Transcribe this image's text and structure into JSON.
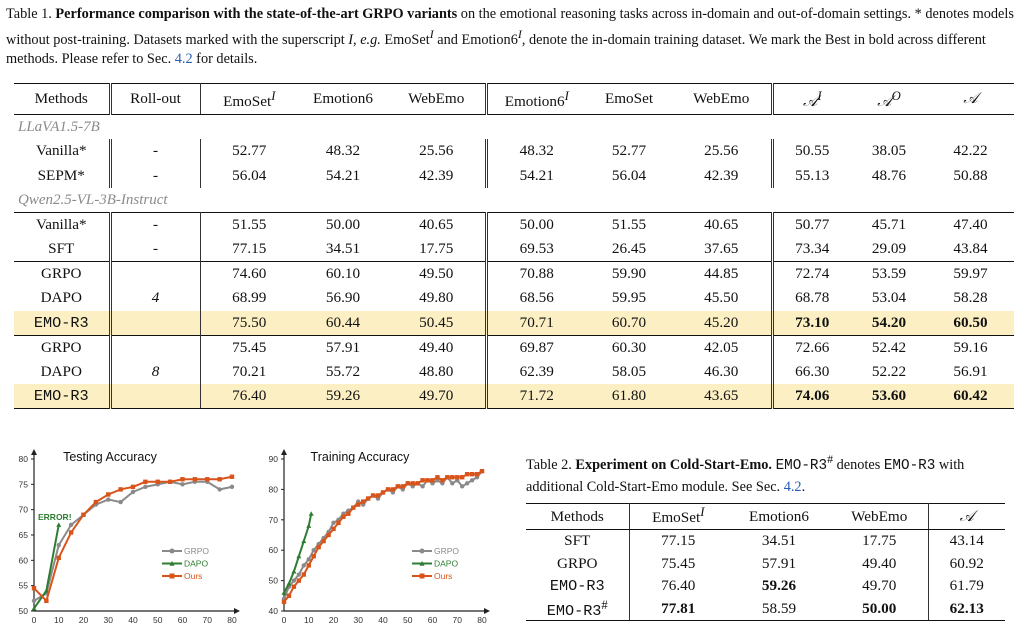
{
  "table1": {
    "caption_label": "Table 1.",
    "caption_bold": "Performance comparison with the state-of-the-art GRPO variants",
    "caption_rest_1": " on the emotional reasoning tasks across in-domain and out-of-domain settings. * denotes models without post-training. Datasets marked with the superscript ",
    "caption_I": "I",
    "caption_rest_2": ", ",
    "caption_eg": "e.g.",
    "caption_rest_3": " EmoSet",
    "caption_rest_4": " and Emotion6",
    "caption_rest_5": ", denote the in-domain training dataset. We mark the Best in bold across different methods. Please refer to Sec. ",
    "caption_ref": "4.2",
    "caption_rest_6": " for details.",
    "headers": {
      "methods": "Methods",
      "rollout": "Roll-out",
      "emoset_in": "EmoSet",
      "emotion6_a": "Emotion6",
      "webemo_a": "WebEmo",
      "emotion6_in": "Emotion6",
      "emoset_b": "EmoSet",
      "webemo_b": "WebEmo",
      "sup_I": "I",
      "sup_O": "O",
      "A": "𝒜"
    },
    "groups": [
      "LLaVA1.5-7B",
      "Qwen2.5-VL-3B-Instruct"
    ],
    "rows": [
      {
        "method": "Vanilla*",
        "rollout": "-",
        "v": [
          "52.77",
          "48.32",
          "25.56",
          "48.32",
          "52.77",
          "25.56",
          "50.55",
          "38.05",
          "42.22"
        ]
      },
      {
        "method": "SEPM*",
        "rollout": "-",
        "v": [
          "56.04",
          "54.21",
          "42.39",
          "54.21",
          "56.04",
          "42.39",
          "55.13",
          "48.76",
          "50.88"
        ]
      },
      {
        "method": "Vanilla*",
        "rollout": "-",
        "v": [
          "51.55",
          "50.00",
          "40.65",
          "50.00",
          "51.55",
          "40.65",
          "50.77",
          "45.71",
          "47.40"
        ]
      },
      {
        "method": "SFT",
        "rollout": "-",
        "v": [
          "77.15",
          "34.51",
          "17.75",
          "69.53",
          "26.45",
          "37.65",
          "73.34",
          "29.09",
          "43.84"
        ]
      },
      {
        "method": "GRPO",
        "rollout": "",
        "v": [
          "74.60",
          "60.10",
          "49.50",
          "70.88",
          "59.90",
          "44.85",
          "72.74",
          "53.59",
          "59.97"
        ]
      },
      {
        "method": "DAPO",
        "rollout": "4",
        "v": [
          "68.99",
          "56.90",
          "49.80",
          "68.56",
          "59.95",
          "45.50",
          "68.78",
          "53.04",
          "58.28"
        ]
      },
      {
        "method": "EMO-R3",
        "rollout": "",
        "v": [
          "75.50",
          "60.44",
          "50.45",
          "70.71",
          "60.70",
          "45.20",
          "73.10",
          "54.20",
          "60.50"
        ]
      },
      {
        "method": "GRPO",
        "rollout": "",
        "v": [
          "75.45",
          "57.91",
          "49.40",
          "69.87",
          "60.30",
          "42.05",
          "72.66",
          "52.42",
          "59.16"
        ]
      },
      {
        "method": "DAPO",
        "rollout": "8",
        "v": [
          "70.21",
          "55.72",
          "48.80",
          "62.39",
          "58.05",
          "46.30",
          "66.30",
          "52.22",
          "56.91"
        ]
      },
      {
        "method": "EMO-R3",
        "rollout": "",
        "v": [
          "76.40",
          "59.26",
          "49.70",
          "71.72",
          "61.80",
          "43.65",
          "74.06",
          "53.60",
          "60.42"
        ]
      }
    ]
  },
  "plots": {
    "testing": {
      "title": "Testing Accuracy",
      "annotation": "ERROR!",
      "ylim": [
        50,
        80
      ],
      "yticks": [
        "50",
        "55",
        "60",
        "65",
        "70",
        "75",
        "80"
      ],
      "xticks": [
        "0",
        "10",
        "20",
        "30",
        "40",
        "50",
        "60",
        "70",
        "80"
      ],
      "legend": [
        "GRPO",
        "DAPO",
        "Ours"
      ]
    },
    "training": {
      "title": "Training Accuracy",
      "ylim": [
        40,
        90
      ],
      "yticks": [
        "40",
        "50",
        "60",
        "70",
        "80",
        "90"
      ],
      "xticks": [
        "0",
        "10",
        "20",
        "30",
        "40",
        "50",
        "60",
        "70",
        "80"
      ],
      "legend": [
        "GRPO",
        "DAPO",
        "Ours"
      ]
    }
  },
  "chart_data": [
    {
      "type": "line",
      "title": "Testing Accuracy",
      "xlabel": "",
      "ylabel": "",
      "xlim": [
        0,
        80
      ],
      "ylim": [
        50,
        80
      ],
      "series": [
        {
          "name": "GRPO",
          "color": "#8a8a8a",
          "x": [
            0,
            5,
            10,
            15,
            20,
            25,
            30,
            35,
            40,
            45,
            50,
            55,
            60,
            65,
            70,
            75,
            80
          ],
          "y": [
            52,
            53.5,
            63,
            67,
            69,
            71,
            72,
            71.5,
            73.5,
            74.5,
            75,
            75.5,
            75,
            75.5,
            75.5,
            74,
            74.5
          ]
        },
        {
          "name": "DAPO",
          "color": "#2e7d32",
          "x": [
            0,
            5,
            10
          ],
          "y": [
            50.5,
            54,
            67
          ]
        },
        {
          "name": "Ours",
          "color": "#d9541a",
          "x": [
            0,
            5,
            10,
            15,
            20,
            25,
            30,
            35,
            40,
            45,
            50,
            55,
            60,
            65,
            70,
            75,
            80
          ],
          "y": [
            54.5,
            52,
            60.5,
            65.5,
            69,
            71.5,
            73,
            74,
            74.5,
            75.5,
            75.5,
            75.5,
            76,
            76,
            76,
            76,
            76.5
          ]
        }
      ]
    },
    {
      "type": "line",
      "title": "Training Accuracy",
      "xlabel": "",
      "ylabel": "",
      "xlim": [
        0,
        80
      ],
      "ylim": [
        40,
        90
      ],
      "series": [
        {
          "name": "GRPO",
          "color": "#8a8a8a",
          "x": [
            0,
            2,
            4,
            6,
            8,
            10,
            12,
            14,
            16,
            18,
            20,
            22,
            24,
            26,
            28,
            30,
            32,
            34,
            36,
            38,
            40,
            42,
            44,
            46,
            48,
            50,
            52,
            54,
            56,
            58,
            60,
            62,
            64,
            66,
            68,
            70,
            72,
            74,
            76,
            78,
            80
          ],
          "y": [
            44,
            48,
            50,
            52,
            55,
            57,
            60,
            62,
            64,
            66,
            69,
            70,
            72,
            73,
            74,
            76,
            75,
            77,
            78,
            77,
            79,
            80,
            79,
            81,
            80,
            82,
            81,
            82,
            81,
            83,
            82,
            83,
            82,
            84,
            82,
            83,
            81,
            82,
            83,
            84,
            86
          ]
        },
        {
          "name": "DAPO",
          "color": "#2e7d32",
          "x": [
            0,
            2,
            4,
            6,
            8,
            10,
            11
          ],
          "y": [
            46,
            49,
            53,
            58,
            63,
            68,
            72
          ]
        },
        {
          "name": "Ours",
          "color": "#d9541a",
          "x": [
            0,
            2,
            4,
            6,
            8,
            10,
            12,
            14,
            16,
            18,
            20,
            22,
            24,
            26,
            28,
            30,
            32,
            34,
            36,
            38,
            40,
            42,
            44,
            46,
            48,
            50,
            52,
            54,
            56,
            58,
            60,
            62,
            64,
            66,
            68,
            70,
            72,
            74,
            76,
            78,
            80
          ],
          "y": [
            43,
            45,
            48,
            50,
            52,
            55,
            58,
            61,
            63,
            65,
            67,
            69,
            71,
            72,
            74,
            75,
            76,
            77,
            78,
            78,
            79,
            80,
            80,
            81,
            81,
            82,
            82,
            82,
            83,
            83,
            83,
            84,
            83,
            84,
            84,
            84,
            84,
            85,
            85,
            85,
            86
          ]
        }
      ]
    }
  ],
  "table2": {
    "caption_label": "Table 2.",
    "caption_bold": "Experiment on Cold-Start-Emo.",
    "caption_name": "EMO-R3",
    "caption_hash": "#",
    "caption_mid": " denotes ",
    "caption_name2": "EMO-R3",
    "caption_end": " with additional Cold-Start-Emo module. See Sec. ",
    "caption_ref": "4.2",
    "caption_dot": ".",
    "headers": {
      "methods": "Methods",
      "emoset": "EmoSet",
      "sup_I": "I",
      "emotion6": "Emotion6",
      "webemo": "WebEmo",
      "A": "𝒜"
    },
    "rows": [
      {
        "method": "SFT",
        "sup": "",
        "v": [
          "77.15",
          "34.51",
          "17.75",
          "43.14"
        ]
      },
      {
        "method": "GRPO",
        "sup": "",
        "v": [
          "75.45",
          "57.91",
          "49.40",
          "60.92"
        ]
      },
      {
        "method": "EMO-R3",
        "sup": "",
        "v": [
          "76.40",
          "59.26",
          "49.70",
          "61.79"
        ]
      },
      {
        "method": "EMO-R3",
        "sup": "#",
        "v": [
          "77.81",
          "58.59",
          "50.00",
          "62.13"
        ]
      }
    ]
  }
}
